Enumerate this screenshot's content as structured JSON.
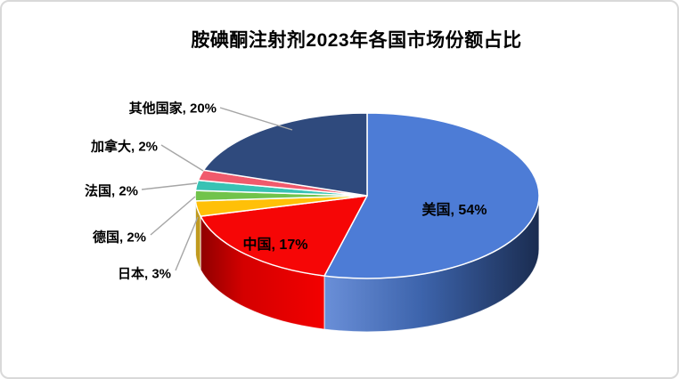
{
  "chart_data": {
    "type": "pie",
    "style": "3d",
    "title": "胺碘酮注射剂2023年各国市场份额占比",
    "start_angle_deg": 0,
    "direction": "clockwise",
    "unit": "%",
    "legend": "none",
    "label_text_color": "#000000",
    "slice_border_color": "#FFFFFF",
    "leader_line_color": "#A6A6A6",
    "slices": [
      {
        "key": "usa",
        "name": "美国",
        "value": 54,
        "display_label": "美国, 54%",
        "color": "#4D7CD6",
        "side": {
          "type": "gradient",
          "stops": [
            [
              "0%",
              "#6A8FD8"
            ],
            [
              "45%",
              "#3D64AC"
            ],
            [
              "100%",
              "#1A2C50"
            ]
          ]
        },
        "label_placement": "inside"
      },
      {
        "key": "china",
        "name": "中国",
        "value": 17,
        "display_label": "中国, 17%",
        "color": "#F60606",
        "side": {
          "type": "gradient",
          "stops": [
            [
              "0%",
              "#8F0000"
            ],
            [
              "35%",
              "#D40000"
            ],
            [
              "100%",
              "#F30000"
            ]
          ]
        },
        "label_placement": "inside"
      },
      {
        "key": "japan",
        "name": "日本",
        "value": 3,
        "display_label": "日本, 3%",
        "color": "#FFC008",
        "side": {
          "type": "solid",
          "color": "#C09A20"
        },
        "label_placement": "outside"
      },
      {
        "key": "germany",
        "name": "德国",
        "value": 2,
        "display_label": "德国, 2%",
        "color": "#71C34B",
        "side": {
          "type": "solid",
          "color": "#4E8A34"
        },
        "label_placement": "outside"
      },
      {
        "key": "france",
        "name": "法国",
        "value": 2,
        "display_label": "法国, 2%",
        "color": "#38C2B4",
        "side": {
          "type": "solid",
          "color": "#2A9287"
        },
        "label_placement": "outside"
      },
      {
        "key": "canada",
        "name": "加拿大",
        "value": 2,
        "display_label": "加拿大, 2%",
        "color": "#F05A6C",
        "side": {
          "type": "solid",
          "color": "#B04350"
        },
        "label_placement": "outside"
      },
      {
        "key": "others",
        "name": "其他国家",
        "value": 20,
        "display_label": "其他国家, 20%",
        "color": "#2F4A7D",
        "side": {
          "type": "solid",
          "color": "#1E3255"
        },
        "label_placement": "outside"
      }
    ]
  }
}
